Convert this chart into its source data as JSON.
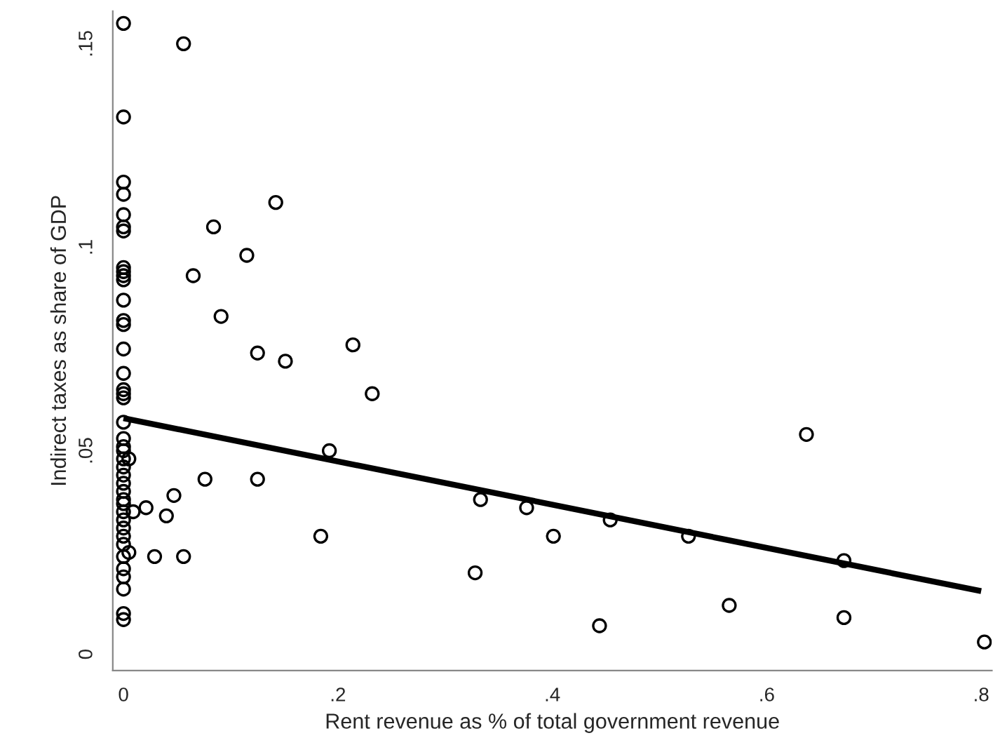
{
  "chart_data": {
    "type": "scatter",
    "xlabel": "Rent revenue as % of total government revenue",
    "ylabel": "Indirect taxes as share of GDP",
    "xlim": [
      -0.01,
      0.81
    ],
    "ylim": [
      -0.004,
      0.158
    ],
    "xticks": [
      0,
      {
        "value": 0.2,
        "label": ".2"
      },
      {
        "value": 0.4,
        "label": ".4"
      },
      {
        "value": 0.6,
        "label": ".6"
      },
      {
        "value": 0.8,
        "label": ".8"
      }
    ],
    "yticks": [
      0,
      {
        "value": 0.05,
        "label": ".05"
      },
      {
        "value": 0.1,
        "label": ".1"
      },
      {
        "value": 0.15,
        "label": ".15"
      }
    ],
    "grid": false,
    "legend": false,
    "series": [
      {
        "marker": "circle",
        "color": "#000000",
        "x": [
          0,
          0,
          0,
          0,
          0,
          0,
          0,
          0,
          0,
          0,
          0,
          0,
          0,
          0,
          0,
          0,
          0,
          0,
          0,
          0,
          0,
          0,
          0,
          0,
          0,
          0,
          0,
          0,
          0,
          0,
          0,
          0,
          0,
          0,
          0,
          0,
          0,
          0,
          0,
          0,
          0,
          0.056,
          0.142,
          0.084,
          0.115,
          0.065,
          0.091,
          0.125,
          0.151,
          0.214,
          0.232,
          0.192,
          0.333,
          0.376,
          0.401,
          0.454,
          0.527,
          0.444,
          0.328,
          0.565,
          0.637,
          0.672,
          0.672,
          0.803,
          0.076,
          0.125,
          0.184,
          0.021,
          0.04,
          0.047,
          0.029,
          0.056,
          0.005,
          0.009,
          0.005
        ],
        "values": [
          0.155,
          0.132,
          0.116,
          0.113,
          0.108,
          0.105,
          0.104,
          0.095,
          0.094,
          0.093,
          0.092,
          0.087,
          0.082,
          0.081,
          0.075,
          0.069,
          0.065,
          0.064,
          0.063,
          0.057,
          0.053,
          0.051,
          0.05,
          0.048,
          0.046,
          0.044,
          0.042,
          0.04,
          0.038,
          0.037,
          0.035,
          0.033,
          0.031,
          0.029,
          0.027,
          0.024,
          0.021,
          0.019,
          0.016,
          0.01,
          0.0085,
          0.15,
          0.111,
          0.105,
          0.098,
          0.093,
          0.083,
          0.074,
          0.072,
          0.076,
          0.064,
          0.05,
          0.038,
          0.036,
          0.029,
          0.033,
          0.029,
          0.007,
          0.02,
          0.012,
          0.054,
          0.023,
          0.009,
          0.003,
          0.043,
          0.043,
          0.029,
          0.036,
          0.034,
          0.039,
          0.024,
          0.024,
          0.048,
          0.035,
          0.025
        ]
      },
      {
        "type": "line",
        "marker": "none",
        "color": "#000000",
        "x": [
          0,
          0.8
        ],
        "values": [
          0.058,
          0.0155
        ]
      }
    ]
  }
}
